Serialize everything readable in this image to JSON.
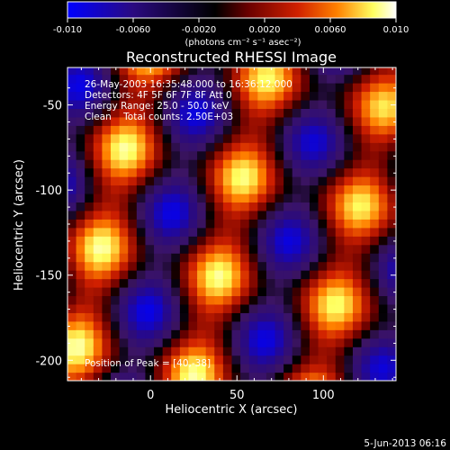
{
  "colorbar": {
    "tick_labels": [
      "-0.010",
      "-0.0060",
      "-0.0020",
      "0.0020",
      "0.0060",
      "0.010"
    ],
    "tick_values": [
      -0.01,
      -0.006,
      -0.002,
      0.002,
      0.006,
      0.01
    ],
    "range": [
      -0.01,
      0.01
    ],
    "unit_label": "(photons cm⁻² s⁻¹ asec⁻²)",
    "gradient_colors": [
      "#0000ff",
      "#2a0a80",
      "#000000",
      "#6a0000",
      "#d02000",
      "#ff8000",
      "#ffff60",
      "#ffffff"
    ]
  },
  "chart_data": {
    "type": "heatmap",
    "title": "Reconstructed RHESSI Image",
    "xlabel": "Heliocentric X (arcsec)",
    "ylabel": "Heliocentric Y (arcsec)",
    "xlim": [
      -48,
      142
    ],
    "ylim": [
      -212,
      -28
    ],
    "xticks": [
      0,
      50,
      100
    ],
    "xtick_labels": [
      "0",
      "50",
      "100"
    ],
    "yticks": [
      -50,
      -100,
      -150,
      -200
    ],
    "ytick_labels": [
      "-50",
      "-100",
      "-150",
      "-200"
    ],
    "annotations": [
      "26-May-2003 16:35:48.000 to 16:36:12.000",
      "Detectors: 4F 5F 6F 7F 8F  Att 0",
      "Energy Range: 25.0 - 50.0 keV",
      "Clean    Total counts: 2.50E+03"
    ],
    "peak_label": "Position of Peak = [40,-38]",
    "peak_position": [
      40,
      -38
    ],
    "pattern": "periodic lobes of alternating bright (yellow/red) and dark (blue/purple) emission",
    "value_range": [
      -0.01,
      0.01
    ]
  },
  "footer": {
    "timestamp": "5-Jun-2013 06:16"
  }
}
